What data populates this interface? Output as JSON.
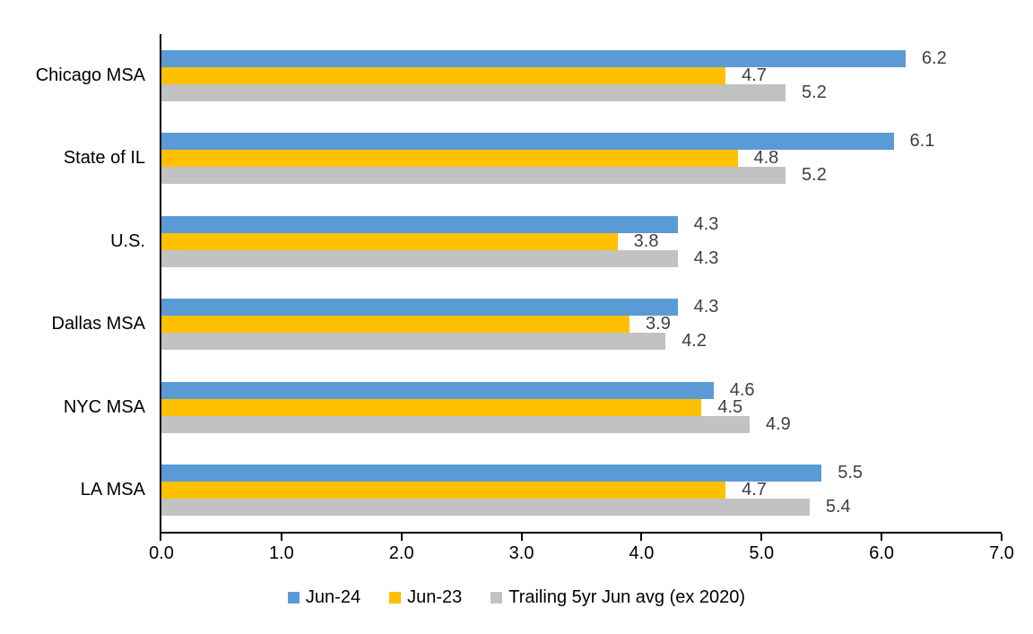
{
  "chart_data": {
    "type": "bar",
    "orientation": "horizontal",
    "title": "",
    "categories": [
      "Chicago MSA",
      "State of IL",
      "U.S.",
      "Dallas MSA",
      "NYC MSA",
      "LA MSA"
    ],
    "series": [
      {
        "name": "Jun-24",
        "color": "#5B9BD5",
        "values": [
          6.2,
          6.1,
          4.3,
          4.3,
          4.6,
          5.5
        ]
      },
      {
        "name": "Jun-23",
        "color": "#FFC000",
        "values": [
          4.7,
          4.8,
          3.8,
          3.9,
          4.5,
          4.7
        ]
      },
      {
        "name": "Trailing 5yr Jun avg (ex 2020)",
        "color": "#C2C2C2",
        "values": [
          5.2,
          5.2,
          4.3,
          4.2,
          4.9,
          5.4
        ]
      }
    ],
    "xlabel": "",
    "ylabel": "",
    "xlim": [
      0.0,
      7.0
    ],
    "x_ticks": [
      "0.0",
      "1.0",
      "2.0",
      "3.0",
      "4.0",
      "5.0",
      "6.0",
      "7.0"
    ],
    "grid": false,
    "data_labels": "outside end, one decimal place",
    "legend_position": "bottom-center"
  },
  "style_colors": {
    "axis": "#000000",
    "data_label": "#404040",
    "category_label": "#000000",
    "background": "#FFFFFF"
  }
}
